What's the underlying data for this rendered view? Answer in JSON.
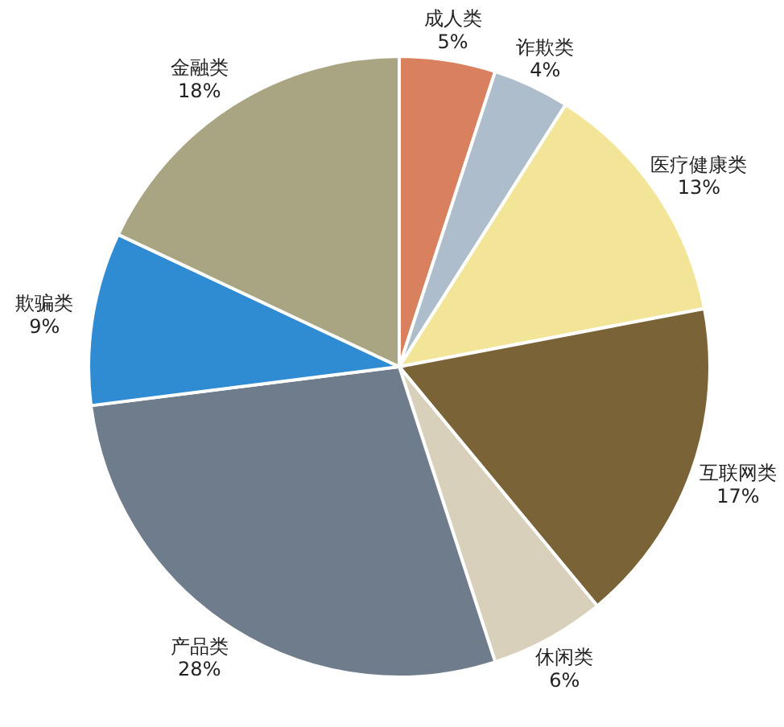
{
  "chart_data": {
    "type": "pie",
    "categories": [
      "成人类",
      "诈欺类",
      "医疗健康类",
      "互联网类",
      "休闲类",
      "产品类",
      "欺骗类",
      "金融类"
    ],
    "values": [
      5,
      4,
      13,
      17,
      6,
      28,
      9,
      18
    ],
    "colors": [
      "#d9805f",
      "#aebdcc",
      "#f3e597",
      "#7b6338",
      "#d8d0bb",
      "#6e7c8b",
      "#2f8bd2",
      "#a9a582"
    ],
    "value_labels": [
      "5%",
      "4%",
      "13%",
      "17%",
      "6%",
      "28%",
      "9%",
      "18%"
    ]
  }
}
